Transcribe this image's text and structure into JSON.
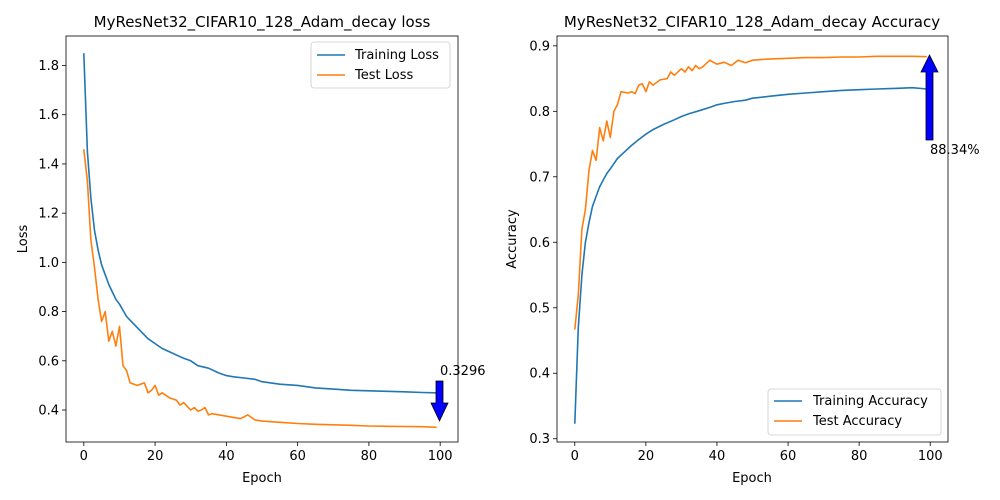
{
  "chart_data": [
    {
      "type": "line",
      "title": "MyResNet32_CIFAR10_128_Adam_decay loss",
      "xlabel": "Epoch",
      "ylabel": "Loss",
      "xlim": [
        -5.0,
        105.0
      ],
      "ylim": [
        0.27,
        1.92
      ],
      "xticks": [
        0,
        20,
        40,
        60,
        80,
        100
      ],
      "yticks": [
        0.4,
        0.6,
        0.8,
        1.0,
        1.2,
        1.4,
        1.6,
        1.8
      ],
      "xtick_labels": [
        "0",
        "20",
        "40",
        "60",
        "80",
        "100"
      ],
      "ytick_labels": [
        "0.4",
        "0.6",
        "0.8",
        "1.0",
        "1.2",
        "1.4",
        "1.6",
        "1.8"
      ],
      "legend_position": "upper right",
      "grid": false,
      "series": [
        {
          "name": "Training Loss",
          "color": "#1f77b4",
          "x": [
            0,
            1,
            2,
            3,
            4,
            5,
            6,
            7,
            8,
            9,
            10,
            12,
            14,
            16,
            18,
            20,
            22,
            25,
            28,
            30,
            32,
            35,
            38,
            40,
            42,
            45,
            48,
            50,
            55,
            60,
            65,
            70,
            75,
            80,
            85,
            90,
            95,
            99
          ],
          "y": [
            1.85,
            1.45,
            1.26,
            1.13,
            1.05,
            0.99,
            0.95,
            0.91,
            0.88,
            0.85,
            0.83,
            0.78,
            0.75,
            0.72,
            0.69,
            0.67,
            0.65,
            0.63,
            0.61,
            0.6,
            0.58,
            0.57,
            0.55,
            0.54,
            0.535,
            0.53,
            0.525,
            0.515,
            0.505,
            0.5,
            0.49,
            0.485,
            0.48,
            0.478,
            0.476,
            0.474,
            0.471,
            0.47
          ]
        },
        {
          "name": "Test Loss",
          "color": "#ff7f0e",
          "x": [
            0,
            1,
            2,
            3,
            4,
            5,
            6,
            7,
            8,
            9,
            10,
            11,
            12,
            13,
            15,
            17,
            18,
            19,
            20,
            21,
            22,
            24,
            26,
            27,
            28,
            30,
            31,
            32,
            33,
            34,
            35,
            36,
            38,
            40,
            42,
            44,
            46,
            47,
            48,
            50,
            55,
            60,
            65,
            70,
            75,
            80,
            85,
            90,
            95,
            99
          ],
          "y": [
            1.46,
            1.33,
            1.09,
            0.98,
            0.85,
            0.76,
            0.8,
            0.68,
            0.72,
            0.66,
            0.74,
            0.58,
            0.56,
            0.51,
            0.5,
            0.51,
            0.47,
            0.48,
            0.5,
            0.46,
            0.47,
            0.45,
            0.44,
            0.42,
            0.43,
            0.4,
            0.41,
            0.395,
            0.4,
            0.41,
            0.38,
            0.385,
            0.38,
            0.375,
            0.37,
            0.365,
            0.38,
            0.37,
            0.36,
            0.355,
            0.35,
            0.345,
            0.342,
            0.34,
            0.338,
            0.335,
            0.334,
            0.333,
            0.332,
            0.3296
          ]
        }
      ],
      "annotation": {
        "text": "0.3296",
        "x": 99,
        "y": 0.3296
      }
    },
    {
      "type": "line",
      "title": "MyResNet32_CIFAR10_128_Adam_decay Accuracy",
      "xlabel": "Epoch",
      "ylabel": "Accuracy",
      "xlim": [
        -5.0,
        105.0
      ],
      "ylim": [
        0.295,
        0.915
      ],
      "xticks": [
        0,
        20,
        40,
        60,
        80,
        100
      ],
      "yticks": [
        0.3,
        0.4,
        0.5,
        0.6,
        0.7,
        0.8,
        0.9
      ],
      "xtick_labels": [
        "0",
        "20",
        "40",
        "60",
        "80",
        "100"
      ],
      "ytick_labels": [
        "0.3",
        "0.4",
        "0.5",
        "0.6",
        "0.7",
        "0.8",
        "0.9"
      ],
      "legend_position": "lower right",
      "grid": false,
      "series": [
        {
          "name": "Training Accuracy",
          "color": "#1f77b4",
          "x": [
            0,
            1,
            2,
            3,
            4,
            5,
            6,
            7,
            8,
            9,
            10,
            12,
            14,
            16,
            18,
            20,
            22,
            25,
            28,
            30,
            32,
            35,
            38,
            40,
            42,
            45,
            48,
            50,
            55,
            60,
            65,
            70,
            75,
            80,
            85,
            90,
            95,
            99
          ],
          "y": [
            0.323,
            0.47,
            0.55,
            0.6,
            0.63,
            0.655,
            0.67,
            0.685,
            0.695,
            0.705,
            0.712,
            0.728,
            0.738,
            0.748,
            0.757,
            0.765,
            0.772,
            0.78,
            0.787,
            0.792,
            0.796,
            0.801,
            0.806,
            0.81,
            0.812,
            0.815,
            0.817,
            0.82,
            0.823,
            0.826,
            0.828,
            0.83,
            0.832,
            0.833,
            0.834,
            0.835,
            0.836,
            0.834
          ]
        },
        {
          "name": "Test Accuracy",
          "color": "#ff7f0e",
          "x": [
            0,
            1,
            2,
            3,
            4,
            5,
            6,
            7,
            8,
            9,
            10,
            11,
            12,
            13,
            15,
            16,
            17,
            18,
            19,
            20,
            21,
            22,
            24,
            26,
            27,
            28,
            30,
            31,
            32,
            33,
            34,
            35,
            36,
            38,
            40,
            42,
            44,
            46,
            47,
            48,
            50,
            55,
            60,
            65,
            70,
            75,
            80,
            85,
            90,
            95,
            99
          ],
          "y": [
            0.467,
            0.52,
            0.62,
            0.65,
            0.71,
            0.74,
            0.725,
            0.775,
            0.755,
            0.785,
            0.76,
            0.8,
            0.81,
            0.83,
            0.828,
            0.83,
            0.827,
            0.84,
            0.842,
            0.83,
            0.845,
            0.84,
            0.848,
            0.85,
            0.86,
            0.855,
            0.865,
            0.86,
            0.868,
            0.862,
            0.87,
            0.865,
            0.868,
            0.878,
            0.872,
            0.875,
            0.87,
            0.878,
            0.876,
            0.874,
            0.878,
            0.88,
            0.881,
            0.882,
            0.882,
            0.883,
            0.883,
            0.884,
            0.884,
            0.884,
            0.8834
          ]
        }
      ],
      "annotation": {
        "text": "88.34%",
        "x": 99,
        "y": 0.8834
      }
    }
  ]
}
